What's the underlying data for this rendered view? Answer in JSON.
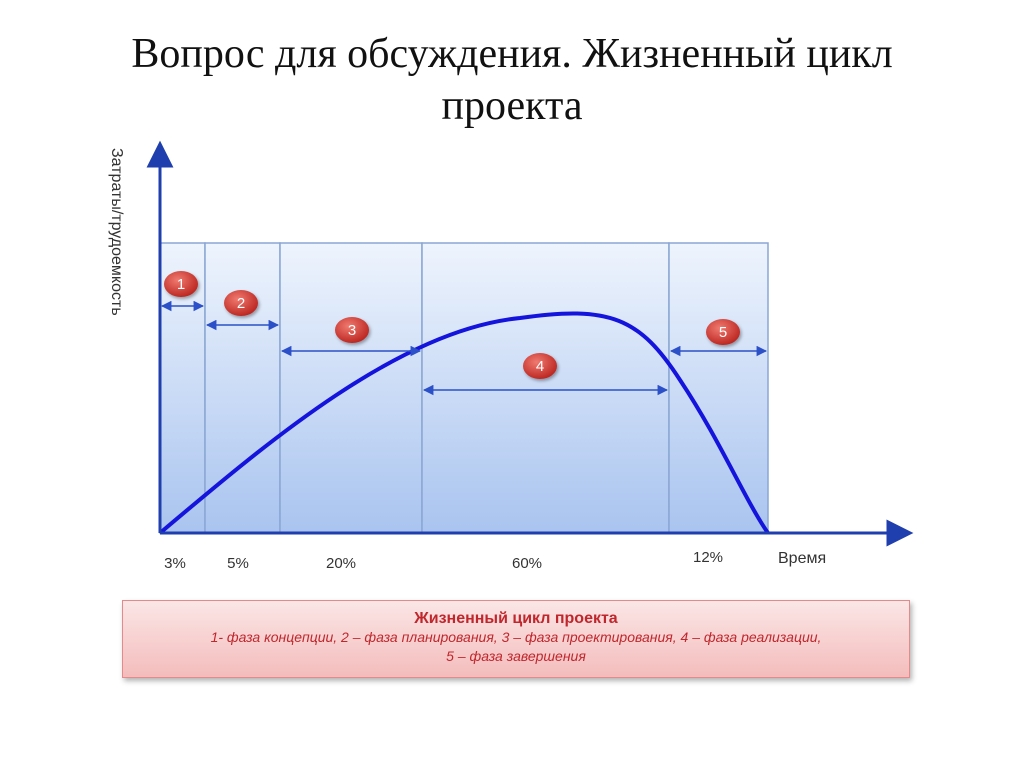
{
  "title": {
    "line1": "Вопрос для обсуждения. Жизненный цикл",
    "line2": "проекта"
  },
  "chart_data": {
    "type": "line",
    "ylabel": "Затраты/трудоемкость",
    "xlabel": "Время",
    "phases": [
      {
        "number": "1",
        "percent": "3%"
      },
      {
        "number": "2",
        "percent": "5%"
      },
      {
        "number": "3",
        "percent": "20%"
      },
      {
        "number": "4",
        "percent": "60%"
      },
      {
        "number": "5",
        "percent": "12%"
      }
    ]
  },
  "caption": {
    "title": "Жизненный цикл проекта",
    "line1": "1- фаза концепции, 2 – фаза планирования, 3 – фаза проектирования, 4 – фаза реализации,",
    "line2": "5 – фаза завершения"
  },
  "colors": {
    "curve": "#1414dc",
    "phase_fill": "#b4cdf2",
    "phase_border": "#8aa6d4",
    "arrow": "#2b50c8",
    "badge": "#c9302c",
    "caption_text": "#c0272d"
  }
}
